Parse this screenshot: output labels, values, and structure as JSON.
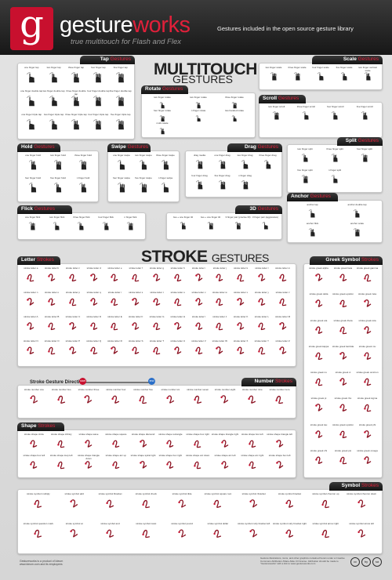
{
  "header": {
    "logo_letter": "g",
    "brand_part1": "gesture",
    "brand_part2": "works",
    "tagline": "true multitouch for Flash and Flex",
    "note": "Gestures included in the open source gesture library"
  },
  "headings": {
    "multitouch_line1": "MULTITOUCH",
    "multitouch_line2": "GESTURES",
    "stroke_bold": "STROKE",
    "stroke_thin": "GESTURES"
  },
  "tab_suffix": "Gestures",
  "tab_suffix_strokes": "Strokes",
  "panels": [
    {
      "id": "tap",
      "title": "Tap",
      "suffix": "Gestures",
      "cols": 5,
      "labels": [
        "one finger tap",
        "two finger tap",
        "three finger tap",
        "four finger tap",
        "five finger tap",
        "one finger double tap",
        "two finger double tap",
        "three finger double tap",
        "four finger double tap",
        "five finger double tap",
        "one finger triple tap",
        "two finger triple tap",
        "three finger triple tap",
        "four finger triple tap",
        "five finger triple tap"
      ]
    },
    {
      "id": "scale",
      "title": "Scale",
      "suffix": "Gestures",
      "cols": 5,
      "labels": [
        "two finger scale",
        "three finger scale",
        "four finger scale",
        "five finger scale",
        "two finger vertical scale"
      ]
    },
    {
      "id": "rotate",
      "title": "Rotate",
      "suffix": "Gestures",
      "cols": 3,
      "labels": [
        "two finger rotate",
        "two finger rotate",
        "three finger rotate",
        "four finger rotate",
        "n finger rotate",
        "two handed rotate",
        "multi-rotate"
      ]
    },
    {
      "id": "scroll",
      "title": "Scroll",
      "suffix": "Gestures",
      "cols": 4,
      "labels": [
        "two finger scroll",
        "three finger scroll",
        "four finger scroll",
        "five finger scroll"
      ]
    },
    {
      "id": "hold",
      "title": "Hold",
      "suffix": "Gestures",
      "cols": 3,
      "labels": [
        "one finger hold",
        "two finger hold",
        "three finger hold",
        "four finger hold",
        "five finger hold",
        "n finger hold"
      ]
    },
    {
      "id": "swipe",
      "title": "Swipe",
      "suffix": "Gestures",
      "cols": 3,
      "labels": [
        "one finger swipe",
        "two finger swipe",
        "three finger swipe",
        "four finger swipe",
        "five finger swipe",
        "n finger swipe"
      ]
    },
    {
      "id": "drag",
      "title": "Drag",
      "suffix": "Gestures",
      "cols": 4,
      "labels": [
        "drag media",
        "one finger drag",
        "two finger drag",
        "three finger drag",
        "four finger drag",
        "five finger drag",
        "n finger drag"
      ]
    },
    {
      "id": "split",
      "title": "Split",
      "suffix": "Gestures",
      "cols": 3,
      "labels": [
        "two finger split",
        "three finger split",
        "four finger split",
        "five finger split",
        "n finger split"
      ]
    },
    {
      "id": "flick",
      "title": "Flick",
      "suffix": "Gestures",
      "cols": 5,
      "labels": [
        "one finger flick",
        "two finger flick",
        "three finger flick",
        "four finger flick",
        "n finger flick"
      ]
    },
    {
      "id": "threed",
      "title": "3D",
      "suffix": "Gestures",
      "cols": 4,
      "labels": [
        "two + one finger tilt",
        "two + one finger tilt",
        "3 finger pair (precise fill)",
        "3 finger pair (aggressive)"
      ]
    },
    {
      "id": "anchor",
      "title": "Anchor",
      "suffix": "Gestures",
      "cols": 2,
      "labels": [
        "anchor tap",
        "anchor double tap",
        "anchor flick",
        "anchor scale"
      ]
    },
    {
      "id": "letter",
      "title": "Letter",
      "suffix": "Strokes",
      "cols": 13,
      "labels": [
        "stroke letter a",
        "stroke letter b",
        "stroke letter c",
        "stroke letter d",
        "stroke letter e",
        "stroke letter f",
        "stroke letter g",
        "stroke letter h",
        "stroke letter i",
        "stroke letter j",
        "stroke letter k",
        "stroke letter l",
        "stroke letter m",
        "stroke letter n",
        "stroke letter o",
        "stroke letter p",
        "stroke letter q",
        "stroke letter r",
        "stroke letter s",
        "stroke letter t",
        "stroke letter u",
        "stroke letter v",
        "stroke letter w",
        "stroke letter x",
        "stroke letter y",
        "stroke letter z",
        "stroke letter A",
        "stroke letter B",
        "stroke letter C",
        "stroke letter D",
        "stroke letter E",
        "stroke letter F",
        "stroke letter G",
        "stroke letter H",
        "stroke letter I",
        "stroke letter J",
        "stroke letter K",
        "stroke letter L",
        "stroke letter M",
        "stroke letter N",
        "stroke letter O",
        "stroke letter P",
        "stroke letter Q",
        "stroke letter R",
        "stroke letter S",
        "stroke letter T",
        "stroke letter U",
        "stroke letter V",
        "stroke letter W",
        "stroke letter X",
        "stroke letter Y",
        "stroke letter Z"
      ]
    },
    {
      "id": "greek",
      "title": "Greek Symbol",
      "suffix": "Strokes",
      "cols": 3,
      "labels": [
        "stroke greek alpha",
        "stroke greek beta",
        "stroke greek gamma",
        "stroke greek delta",
        "stroke greek epsilon",
        "stroke greek zeta",
        "stroke greek eta",
        "stroke greek theta",
        "stroke greek iota",
        "stroke greek kappa",
        "stroke greek lambda",
        "stroke greek mu",
        "stroke greek nu",
        "stroke greek xi",
        "stroke greek omicron",
        "stroke greek pi",
        "stroke greek rho",
        "stroke greek sigma",
        "stroke greek tau",
        "stroke greek upsilon",
        "stroke greek phi",
        "stroke greek chi",
        "stroke greek psi",
        "stroke greek omega"
      ]
    },
    {
      "id": "number",
      "title": "Number",
      "suffix": "Strokes",
      "cols": 10,
      "labels": [
        "stroke number one",
        "stroke number two",
        "stroke number three",
        "stroke number four",
        "stroke number five",
        "stroke number six",
        "stroke number seven",
        "stroke number eight",
        "stroke number nine",
        "stroke number zero"
      ]
    },
    {
      "id": "shape",
      "title": "Shape",
      "suffix": "Strokes",
      "cols": 10,
      "labels": [
        "stroke shape circle",
        "stroke shape infinity",
        "stroke shape wave",
        "stroke shape square",
        "stroke shape diamond",
        "stroke shape rectangle",
        "stroke shape box right",
        "stroke shape triangle right",
        "stroke shape box left",
        "stroke shape triangle left",
        "stroke shape box left",
        "stroke shape loop left",
        "stroke shape triangle down",
        "stroke shape arc up",
        "stroke shape spiral right",
        "stroke shape box right",
        "stroke shape arc down",
        "stroke shape arc left",
        "stroke shape arc right",
        "stroke shape box left"
      ]
    },
    {
      "id": "symbol",
      "title": "Symbol",
      "suffix": "Strokes",
      "cols": 10,
      "labels": [
        "stroke symbol multiply",
        "stroke symbol add",
        "stroke symbol lbracket",
        "stroke symbol check",
        "stroke symbol tilde",
        "stroke symbol square root",
        "stroke symbol rbracket",
        "stroke symbol bracket",
        "stroke symbol chevron up",
        "stroke symbol chevron down",
        "stroke symbol question mark",
        "stroke symbol at",
        "stroke symbol and",
        "stroke symbol caret",
        "stroke symbol pound",
        "stroke symbol dollar",
        "stroke symbol curly bracket left",
        "stroke symbol curly bracket right",
        "stroke symbol arrow right",
        "stroke symbol arrow left"
      ]
    }
  ],
  "direction": {
    "label": "Stroke Gesture Direction:",
    "start": "start",
    "end": "end"
  },
  "footer": {
    "left_line1": "Gestureworks is a product of Ideum",
    "left_line2": "www.ideum.com and its employees",
    "right_text": "Gesture illustrations, icons, and other graphics contained herein under a Creative Commons Attribution-Share Alike 3.0 license. Attribution should be made to \"Gestureworks\" with a link to www.gestureworks.com",
    "cc1": "cc",
    "cc2": "by",
    "cc3": "sa"
  },
  "colors": {
    "accent": "#c8102e",
    "tab_dark": "#1e1e1e",
    "ink": "#8a1020"
  }
}
